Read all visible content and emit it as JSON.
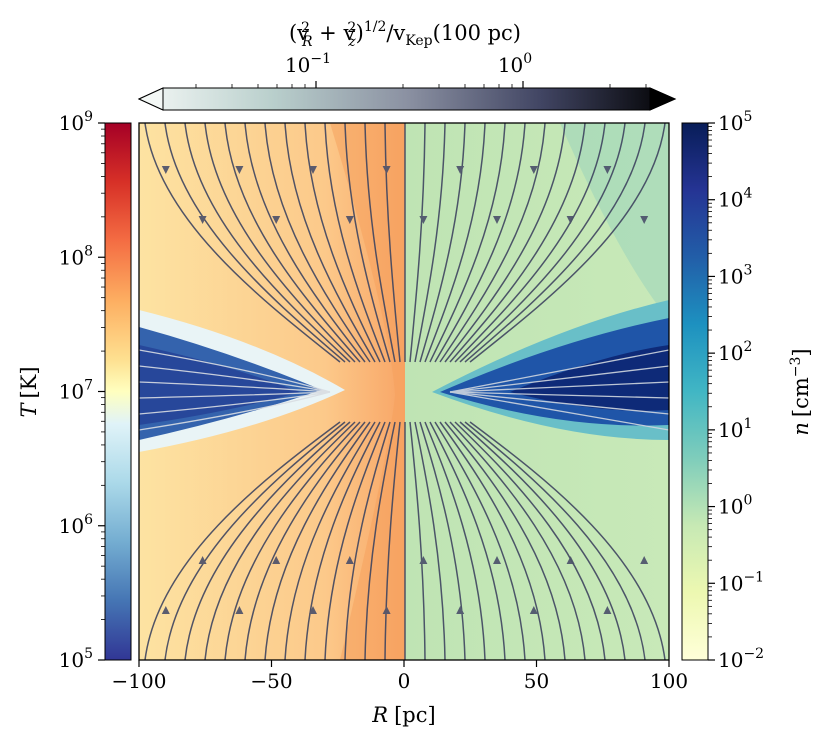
{
  "chart_data": {
    "type": "heatmap",
    "title": "",
    "x_axis": {
      "label_symbol": "R",
      "label_unit": "[pc]",
      "range": [
        -100,
        100
      ],
      "ticks": [
        "−100",
        "−50",
        "0",
        "50",
        "100"
      ],
      "tick_values": [
        -100,
        -50,
        0,
        50,
        100
      ]
    },
    "left_colorbar": {
      "quantity": "T",
      "label_symbol": "T",
      "label_unit": "[K]",
      "scale": "log",
      "range": [
        100000,
        1000000000
      ],
      "tick_mantissa": "10",
      "tick_exponents": [
        "5",
        "6",
        "7",
        "8",
        "9"
      ],
      "colormap": "RdYlBu_r",
      "applies_to": "left half (R < 0)"
    },
    "right_colorbar": {
      "quantity": "n",
      "label_symbol": "n",
      "label_unit": "[cm",
      "label_unit_exp": "−3",
      "label_unit_close": "]",
      "scale": "log",
      "range": [
        0.01,
        100000
      ],
      "tick_mantissa": "10",
      "tick_exponents": [
        "−2",
        "−1",
        "0",
        "1",
        "2",
        "3",
        "4",
        "5"
      ],
      "colormap": "YlGnBu",
      "applies_to": "right half (R > 0)"
    },
    "top_colorbar": {
      "label_text": "(v",
      "label_parts": [
        "(v",
        "2",
        "R",
        " + v",
        "2",
        "z",
        ")",
        "1/2",
        "/v",
        "Kep",
        "(100 pc)"
      ],
      "scale": "log",
      "tick_mantissa": "10",
      "tick_exponents": [
        "−1",
        "0"
      ],
      "colormap": "bone_r",
      "extend": "both",
      "applies_to": "streamline color (velocity magnitude)"
    },
    "features": {
      "streamlines": "converging inflow toward center from top and bottom",
      "cold_disk": "dense cold equatorial disk, thicker at large |R|"
    }
  }
}
